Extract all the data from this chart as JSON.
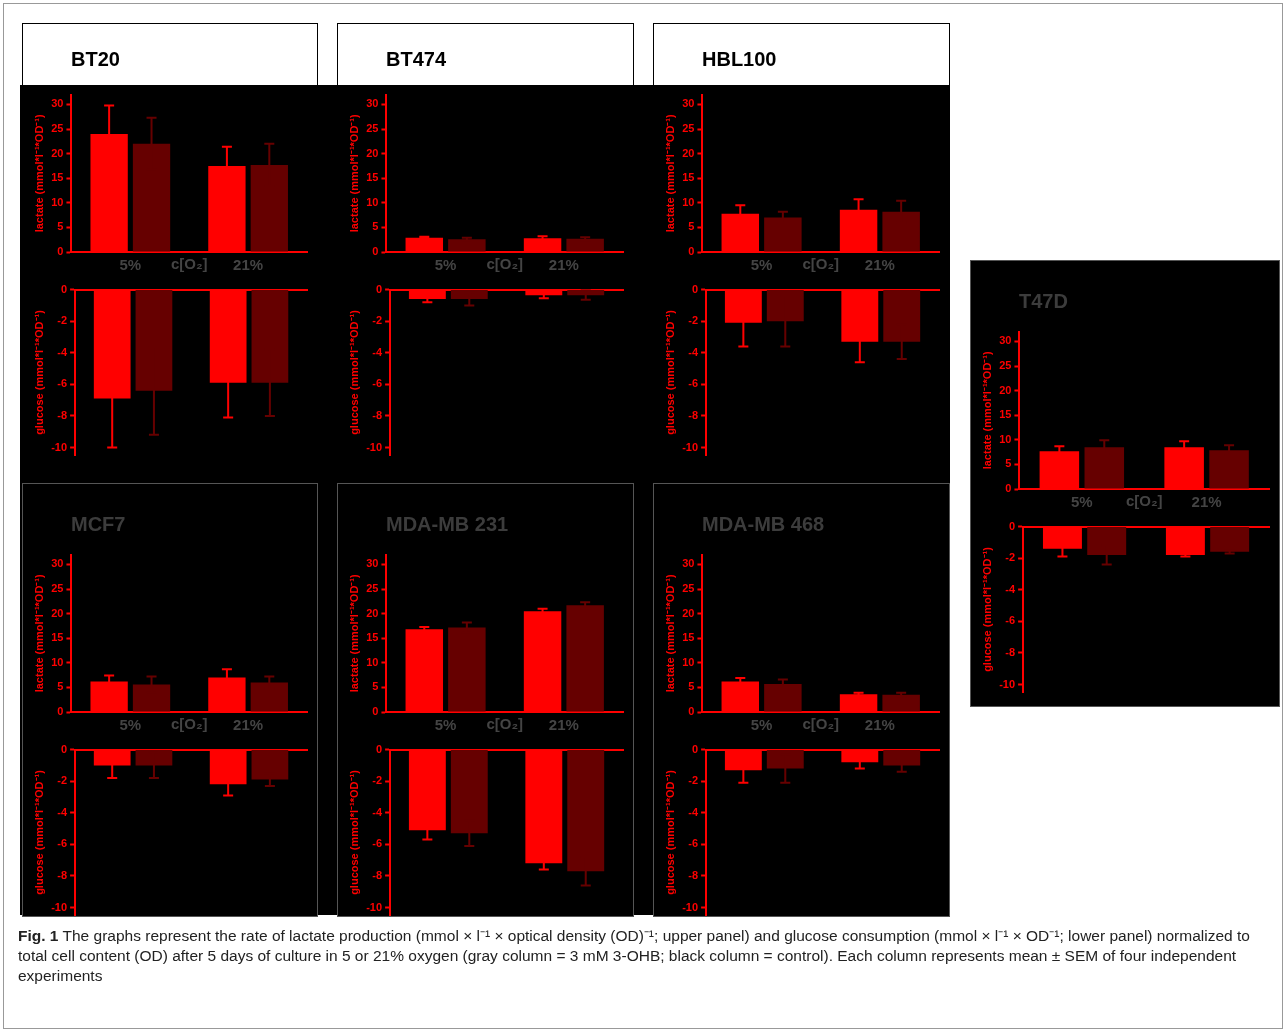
{
  "chart_data": [
    {
      "type": "bar",
      "title": "BT20",
      "ylabel": "lactate (mmol*l⁻¹*OD⁻¹)",
      "xlabel": "c[O₂]",
      "categories": [
        "5%",
        "21%"
      ],
      "ylim": [
        0,
        32
      ],
      "yticks": [
        0,
        5,
        10,
        15,
        20,
        25,
        30
      ],
      "series": [
        {
          "color": "#ff0000",
          "values": [
            24.0,
            17.5
          ],
          "errors": [
            5.8,
            3.9
          ]
        },
        {
          "color": "#660000",
          "values": [
            22.0,
            17.7
          ],
          "errors": [
            5.3,
            4.3
          ]
        }
      ]
    },
    {
      "type": "bar",
      "ylabel": "glucose (mmol*l⁻¹*OD⁻¹)",
      "categories": [
        null,
        null
      ],
      "tick_labels": "y",
      "ylim": [
        -10.5,
        0
      ],
      "yticks": [
        0,
        -2,
        -4,
        -6,
        -8,
        -10
      ],
      "series": [
        {
          "color": "#ff0000",
          "values": [
            -6.9,
            -5.9
          ],
          "errors": [
            3.1,
            2.2
          ]
        },
        {
          "color": "#660000",
          "values": [
            -6.4,
            -5.9
          ],
          "errors": [
            2.8,
            2.1
          ]
        }
      ]
    },
    {
      "type": "bar",
      "title": "BT474",
      "ylabel": "lactate (mmol*l⁻¹*OD⁻¹)",
      "xlabel": "c[O₂]",
      "categories": [
        "5%",
        "21%"
      ],
      "ylim": [
        0,
        32
      ],
      "yticks": [
        0,
        5,
        10,
        15,
        20,
        25,
        30
      ],
      "series": [
        {
          "color": "#ff0000",
          "values": [
            2.9,
            2.8
          ],
          "errors": [
            0.2,
            0.4
          ]
        },
        {
          "color": "#660000",
          "values": [
            2.6,
            2.7
          ],
          "errors": [
            0.3,
            0.3
          ]
        }
      ]
    },
    {
      "type": "bar",
      "ylabel": "glucose (mmol*l⁻¹*OD⁻¹)",
      "categories": [
        null,
        null
      ],
      "tick_labels": "y",
      "ylim": [
        -10.5,
        0
      ],
      "yticks": [
        0,
        -2,
        -4,
        -6,
        -8,
        -10
      ],
      "series": [
        {
          "color": "#ff0000",
          "values": [
            -0.6,
            -0.35
          ],
          "errors": [
            0.2,
            0.2
          ]
        },
        {
          "color": "#660000",
          "values": [
            -0.6,
            -0.35
          ],
          "errors": [
            0.4,
            0.3
          ]
        }
      ]
    },
    {
      "type": "bar",
      "title": "HBL100",
      "ylabel": "lactate (mmol*l⁻¹*OD⁻¹)",
      "xlabel": "c[O₂]",
      "categories": [
        "5%",
        "21%"
      ],
      "ylim": [
        0,
        32
      ],
      "yticks": [
        0,
        5,
        10,
        15,
        20,
        25,
        30
      ],
      "series": [
        {
          "color": "#ff0000",
          "values": [
            7.8,
            8.6
          ],
          "errors": [
            1.7,
            2.1
          ]
        },
        {
          "color": "#660000",
          "values": [
            7.0,
            8.2
          ],
          "errors": [
            1.2,
            2.2
          ]
        }
      ]
    },
    {
      "type": "bar",
      "ylabel": "glucose (mmol*l⁻¹*OD⁻¹)",
      "categories": [
        null,
        null
      ],
      "tick_labels": "y",
      "ylim": [
        -10.5,
        0
      ],
      "yticks": [
        0,
        -2,
        -4,
        -6,
        -8,
        -10
      ],
      "series": [
        {
          "color": "#ff0000",
          "values": [
            -2.1,
            -3.3
          ],
          "errors": [
            1.5,
            1.3
          ]
        },
        {
          "color": "#660000",
          "values": [
            -2.0,
            -3.3
          ],
          "errors": [
            1.6,
            1.1
          ]
        }
      ]
    },
    {
      "type": "bar",
      "title": "T47D",
      "ylabel": "lactate (mmol*l⁻¹*OD⁻¹)",
      "xlabel": "c[O₂]",
      "categories": [
        "5%",
        "21%"
      ],
      "ylim": [
        0,
        32
      ],
      "yticks": [
        0,
        5,
        10,
        15,
        20,
        25,
        30
      ],
      "series": [
        {
          "color": "#ff0000",
          "values": [
            7.7,
            8.5
          ],
          "errors": [
            1.0,
            1.2
          ]
        },
        {
          "color": "#660000",
          "values": [
            8.5,
            7.9
          ],
          "errors": [
            1.4,
            1.0
          ]
        }
      ]
    },
    {
      "type": "bar",
      "ylabel": "glucose (mmol*l⁻¹*OD⁻¹)",
      "categories": [
        null,
        null
      ],
      "tick_labels": "y",
      "ylim": [
        -10.5,
        0
      ],
      "yticks": [
        0,
        -2,
        -4,
        -6,
        -8,
        -10
      ],
      "series": [
        {
          "color": "#ff0000",
          "values": [
            -1.4,
            -1.8
          ],
          "errors": [
            0.5,
            0.1
          ]
        },
        {
          "color": "#660000",
          "values": [
            -1.8,
            -1.6
          ],
          "errors": [
            0.6,
            0.1
          ]
        }
      ]
    },
    {
      "type": "bar",
      "title": "MCF7",
      "ylabel": "lactate (mmol*l⁻¹*OD⁻¹)",
      "xlabel": "c[O₂]",
      "categories": [
        "5%",
        "21%"
      ],
      "ylim": [
        0,
        32
      ],
      "yticks": [
        0,
        5,
        10,
        15,
        20,
        25,
        30
      ],
      "series": [
        {
          "color": "#ff0000",
          "values": [
            6.2,
            7.0
          ],
          "errors": [
            1.2,
            1.7
          ]
        },
        {
          "color": "#660000",
          "values": [
            5.6,
            6.0
          ],
          "errors": [
            1.6,
            1.2
          ]
        }
      ]
    },
    {
      "type": "bar",
      "ylabel": "glucose (mmol*l⁻¹*OD⁻¹)",
      "categories": [
        null,
        null
      ],
      "tick_labels": "y",
      "ylim": [
        -10.5,
        0
      ],
      "yticks": [
        0,
        -2,
        -4,
        -6,
        -8,
        -10
      ],
      "series": [
        {
          "color": "#ff0000",
          "values": [
            -1.0,
            -2.2
          ],
          "errors": [
            0.8,
            0.7
          ]
        },
        {
          "color": "#660000",
          "values": [
            -1.0,
            -1.9
          ],
          "errors": [
            0.8,
            0.4
          ]
        }
      ]
    },
    {
      "type": "bar",
      "title": "MDA-MB 231",
      "ylabel": "lactate (mmol*l⁻¹*OD⁻¹)",
      "xlabel": "c[O₂]",
      "categories": [
        "5%",
        "21%"
      ],
      "ylim": [
        0,
        32
      ],
      "yticks": [
        0,
        5,
        10,
        15,
        20,
        25,
        30
      ],
      "series": [
        {
          "color": "#ff0000",
          "values": [
            16.8,
            20.5
          ],
          "errors": [
            0.5,
            0.5
          ]
        },
        {
          "color": "#660000",
          "values": [
            17.2,
            21.7
          ],
          "errors": [
            1.0,
            0.6
          ]
        }
      ]
    },
    {
      "type": "bar",
      "ylabel": "glucose (mmol*l⁻¹*OD⁻¹)",
      "categories": [
        null,
        null
      ],
      "tick_labels": "y",
      "ylim": [
        -10.5,
        0
      ],
      "yticks": [
        0,
        -2,
        -4,
        -6,
        -8,
        -10
      ],
      "series": [
        {
          "color": "#ff0000",
          "values": [
            -5.1,
            -7.2
          ],
          "errors": [
            0.6,
            0.4
          ]
        },
        {
          "color": "#660000",
          "values": [
            -5.3,
            -7.7
          ],
          "errors": [
            0.8,
            0.9
          ]
        }
      ]
    },
    {
      "type": "bar",
      "title": "MDA-MB 468",
      "ylabel": "lactate (mmol*l⁻¹*OD⁻¹)",
      "xlabel": "c[O₂]",
      "categories": [
        "5%",
        "21%"
      ],
      "ylim": [
        0,
        32
      ],
      "yticks": [
        0,
        5,
        10,
        15,
        20,
        25,
        30
      ],
      "series": [
        {
          "color": "#ff0000",
          "values": [
            6.2,
            3.6
          ],
          "errors": [
            0.7,
            0.3
          ]
        },
        {
          "color": "#660000",
          "values": [
            5.7,
            3.5
          ],
          "errors": [
            0.9,
            0.4
          ]
        }
      ]
    },
    {
      "type": "bar",
      "ylabel": "glucose (mmol*l⁻¹*OD⁻¹)",
      "categories": [
        null,
        null
      ],
      "tick_labels": "y",
      "ylim": [
        -10.5,
        0
      ],
      "yticks": [
        0,
        -2,
        -4,
        -6,
        -8,
        -10
      ],
      "series": [
        {
          "color": "#ff0000",
          "values": [
            -1.3,
            -0.8
          ],
          "errors": [
            0.8,
            0.4
          ]
        },
        {
          "color": "#660000",
          "values": [
            -1.2,
            -1.0
          ],
          "errors": [
            0.9,
            0.4
          ]
        }
      ]
    },
    {
      "type": "other",
      "annotations": [
        "Fig. 1 The graphs represent the rate of lactate production (mmol × l⁻¹ × optical density (OD)⁻¹; upper panel) and glucose consumption (mmol × l⁻¹ × OD⁻¹; lower panel) normalized to total cell content (OD) after 5 days of culture in 5 or 21% oxygen (gray column = 3 mM 3-OHB; black column = control). Each column represents mean ± SEM of four independent experiments"
      ]
    }
  ]
}
